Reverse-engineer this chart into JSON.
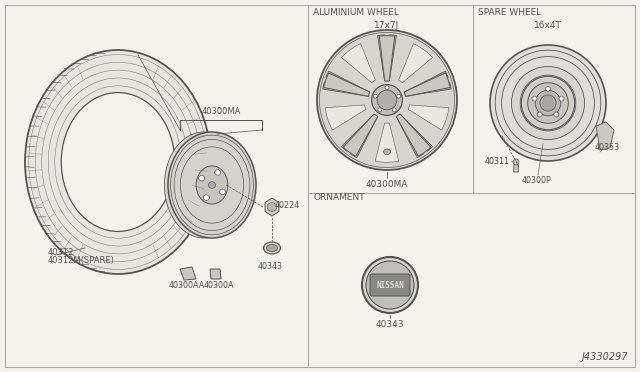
{
  "bg_color": "#f2f1ec",
  "line_color": "#555555",
  "diagram_id": "J4330297",
  "aluminium_wheel_label": "ALUMINIUM WHEEL",
  "aluminium_wheel_size": "17x7J",
  "spare_wheel_label": "SPARE WHEEL",
  "spare_wheel_size": "16x4T",
  "ornament_label": "ORNAMENT",
  "p40300MA": "40300MA",
  "p40312": "40312",
  "p40312M": "40312M(SPARE)",
  "p40224": "40224",
  "p40343": "40343",
  "p40300AA": "40300AA",
  "p40300A": "40300A",
  "p40311": "40311",
  "p40300P": "40300P",
  "p40353": "40353"
}
